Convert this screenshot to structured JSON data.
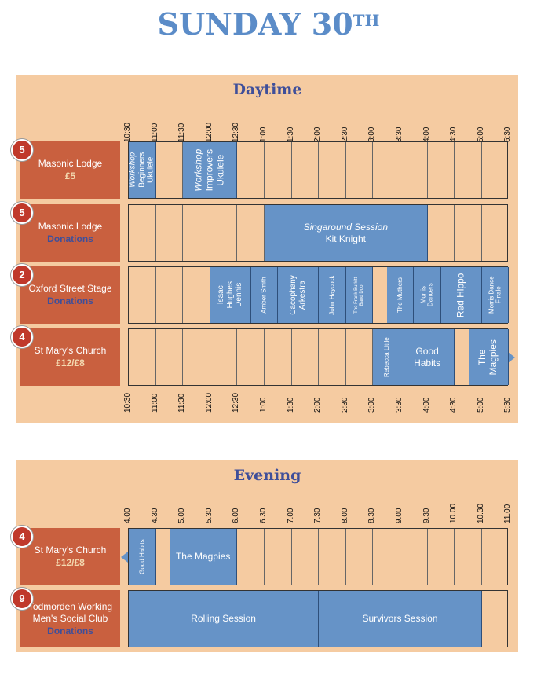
{
  "title": {
    "main": "SUNDAY 30",
    "sup": "TH"
  },
  "daytime": {
    "heading": "Daytime",
    "times": [
      "10:30",
      "11:00",
      "11:30",
      "12:00",
      "12:30",
      "1:00",
      "1:30",
      "2:00",
      "2:30",
      "3:00",
      "3:30",
      "4:00",
      "4:30",
      "5:00",
      "5:30"
    ],
    "rows": [
      {
        "badge": "5",
        "venue": "Masonic Lodge",
        "price": "£5",
        "price_style": "fee",
        "events": [
          {
            "start": 0,
            "end": 1,
            "orient": "v",
            "size": 10,
            "lines": [
              "Workshop",
              "Beginners",
              "Ukulele"
            ],
            "italic_first": true
          },
          {
            "start": 2,
            "end": 4,
            "orient": "v",
            "size": 12,
            "lines": [
              "Workshop",
              "Improvers",
              "Ukulele"
            ],
            "italic_first": true
          }
        ]
      },
      {
        "badge": "5",
        "venue": "Masonic Lodge",
        "price": "Donations",
        "price_style": "don",
        "events": [
          {
            "start": 5,
            "end": 11,
            "orient": "h",
            "size": 12,
            "lines": [
              "Singaround Session",
              "Kit Knight"
            ],
            "italic_first": true
          }
        ]
      },
      {
        "badge": "2",
        "venue": "Oxford Street Stage",
        "price": "Donations",
        "price_style": "don",
        "events": [
          {
            "start": 3,
            "end": 4.5,
            "orient": "v",
            "size": 10,
            "lines": [
              "Isaac",
              "Hughes",
              "Dennis"
            ]
          },
          {
            "start": 4.5,
            "end": 5.5,
            "orient": "v",
            "size": 8,
            "lines": [
              "Amber Smith"
            ]
          },
          {
            "start": 5.5,
            "end": 7,
            "orient": "v",
            "size": 10,
            "lines": [
              "Cacophany",
              "Arkestra"
            ]
          },
          {
            "start": 7,
            "end": 8,
            "orient": "v",
            "size": 8,
            "lines": [
              "John Haycock"
            ]
          },
          {
            "start": 8,
            "end": 9,
            "orient": "v",
            "size": 6,
            "lines": [
              "The Frank Burkitt",
              "Band Duo"
            ]
          },
          {
            "start": 9.5,
            "end": 10.5,
            "orient": "v",
            "size": 8,
            "lines": [
              "The Muthers"
            ]
          },
          {
            "start": 10.5,
            "end": 11.5,
            "orient": "v",
            "size": 8,
            "lines": [
              "Morris",
              "Dancers"
            ]
          },
          {
            "start": 11.5,
            "end": 13,
            "orient": "v",
            "size": 12,
            "lines": [
              "Red Hippo"
            ]
          },
          {
            "start": 13,
            "end": 14,
            "orient": "v",
            "size": 8,
            "lines": [
              "Morris Dance",
              "Finale"
            ]
          }
        ]
      },
      {
        "badge": "4",
        "venue": "St Mary's Church",
        "price": "£12/£8",
        "price_style": "fee",
        "events": [
          {
            "start": 9,
            "end": 10,
            "orient": "v",
            "size": 8,
            "lines": [
              "Rebecca Little"
            ]
          },
          {
            "start": 10,
            "end": 12,
            "orient": "h",
            "size": 12,
            "lines": [
              "Good",
              "Habits"
            ]
          },
          {
            "start": 12.5,
            "end": 14,
            "orient": "v",
            "size": 12,
            "lines": [
              "The",
              "Magpies"
            ],
            "arrow": "right"
          }
        ]
      }
    ]
  },
  "evening": {
    "heading": "Evening",
    "times": [
      "4.00",
      "4.30",
      "5.00",
      "5.30",
      "6.00",
      "6.30",
      "7.00",
      "7.30",
      "8.00",
      "8.30",
      "9.00",
      "9.30",
      "10.00",
      "10.30",
      "11.00"
    ],
    "rows": [
      {
        "badge": "4",
        "venue": "St Mary's Church",
        "price": "£12/£8",
        "price_style": "fee",
        "events": [
          {
            "start": 0,
            "end": 1,
            "orient": "v",
            "size": 8,
            "lines": [
              "Good Habits"
            ],
            "arrow": "left"
          },
          {
            "start": 1.5,
            "end": 4,
            "orient": "h",
            "size": 12,
            "lines": [
              "The Magpies"
            ]
          }
        ]
      },
      {
        "badge": "9",
        "venue": "Todmorden Working Men's Social Club",
        "venue_lines": [
          "Todmorden Working",
          "Men's Social Club"
        ],
        "price": "Donations",
        "price_style": "don",
        "events": [
          {
            "start": 0,
            "end": 7,
            "orient": "h",
            "size": 12,
            "lines": [
              "Rolling Session"
            ]
          },
          {
            "start": 7,
            "end": 13,
            "orient": "h",
            "size": 12,
            "lines": [
              "Survivors Session"
            ]
          }
        ]
      }
    ]
  },
  "colors": {
    "panel": "#f5cba1",
    "venue": "#c9603f",
    "event": "#6693c7",
    "title": "#5b8cc8",
    "heading": "#3f4f9a",
    "badge": "#c0392b"
  }
}
